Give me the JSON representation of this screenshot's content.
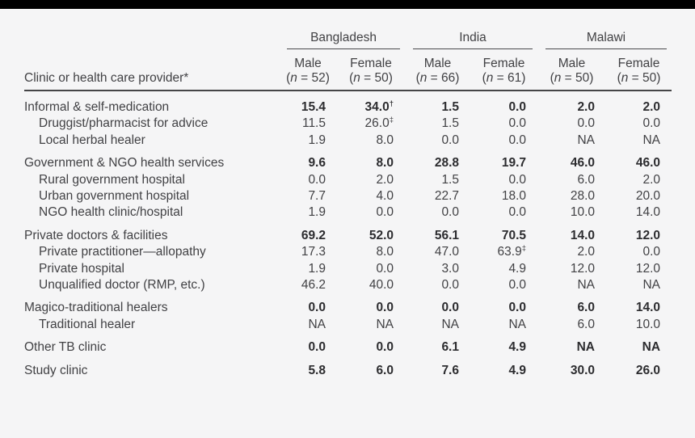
{
  "colors": {
    "background": "#f5f5f6",
    "text": "#414144",
    "bold_text": "#2c2c2f",
    "rule": "#4b4b4d",
    "top_bar": "#000000"
  },
  "table": {
    "row_header_label": "Clinic or health care provider*",
    "country_groups": [
      {
        "label": "Bangladesh",
        "columns": [
          {
            "sex": "Male",
            "n_label": "(n = 52)"
          },
          {
            "sex": "Female",
            "n_label": "(n = 50)"
          }
        ]
      },
      {
        "label": "India",
        "columns": [
          {
            "sex": "Male",
            "n_label": "(n = 66)"
          },
          {
            "sex": "Female",
            "n_label": "(n = 61)"
          }
        ]
      },
      {
        "label": "Malawi",
        "columns": [
          {
            "sex": "Male",
            "n_label": "(n = 50)"
          },
          {
            "sex": "Female",
            "n_label": "(n = 50)"
          }
        ]
      }
    ],
    "rows": [
      {
        "label": "Informal & self-medication",
        "indent": false,
        "bold": true,
        "group_start": true,
        "values": [
          "15.4",
          "34.0†",
          "1.5",
          "0.0",
          "2.0",
          "2.0"
        ]
      },
      {
        "label": "Druggist/pharmacist for advice",
        "indent": true,
        "bold": false,
        "group_start": false,
        "values": [
          "11.5",
          "26.0‡",
          "1.5",
          "0.0",
          "0.0",
          "0.0"
        ]
      },
      {
        "label": "Local herbal healer",
        "indent": true,
        "bold": false,
        "group_start": false,
        "values": [
          "1.9",
          "8.0",
          "0.0",
          "0.0",
          "NA",
          "NA"
        ]
      },
      {
        "label": "Government & NGO health services",
        "indent": false,
        "bold": true,
        "group_start": true,
        "values": [
          "9.6",
          "8.0",
          "28.8",
          "19.7",
          "46.0",
          "46.0"
        ]
      },
      {
        "label": "Rural government hospital",
        "indent": true,
        "bold": false,
        "group_start": false,
        "values": [
          "0.0",
          "2.0",
          "1.5",
          "0.0",
          "6.0",
          "2.0"
        ]
      },
      {
        "label": "Urban government hospital",
        "indent": true,
        "bold": false,
        "group_start": false,
        "values": [
          "7.7",
          "4.0",
          "22.7",
          "18.0",
          "28.0",
          "20.0"
        ]
      },
      {
        "label": "NGO health clinic/hospital",
        "indent": true,
        "bold": false,
        "group_start": false,
        "values": [
          "1.9",
          "0.0",
          "0.0",
          "0.0",
          "10.0",
          "14.0"
        ]
      },
      {
        "label": "Private doctors & facilities",
        "indent": false,
        "bold": true,
        "group_start": true,
        "values": [
          "69.2",
          "52.0",
          "56.1",
          "70.5",
          "14.0",
          "12.0"
        ]
      },
      {
        "label": "Private practitioner—allopathy",
        "indent": true,
        "bold": false,
        "group_start": false,
        "values": [
          "17.3",
          "8.0",
          "47.0",
          "63.9‡",
          "2.0",
          "0.0"
        ]
      },
      {
        "label": "Private hospital",
        "indent": true,
        "bold": false,
        "group_start": false,
        "values": [
          "1.9",
          "0.0",
          "3.0",
          "4.9",
          "12.0",
          "12.0"
        ]
      },
      {
        "label": "Unqualified doctor (RMP, etc.)",
        "indent": true,
        "bold": false,
        "group_start": false,
        "values": [
          "46.2",
          "40.0",
          "0.0",
          "0.0",
          "NA",
          "NA"
        ]
      },
      {
        "label": "Magico-traditional healers",
        "indent": false,
        "bold": true,
        "group_start": true,
        "values": [
          "0.0",
          "0.0",
          "0.0",
          "0.0",
          "6.0",
          "14.0"
        ]
      },
      {
        "label": "Traditional healer",
        "indent": true,
        "bold": false,
        "group_start": false,
        "values": [
          "NA",
          "NA",
          "NA",
          "NA",
          "6.0",
          "10.0"
        ]
      },
      {
        "label": "Other TB clinic",
        "indent": false,
        "bold": true,
        "group_start": true,
        "values": [
          "0.0",
          "0.0",
          "6.1",
          "4.9",
          "NA",
          "NA"
        ]
      },
      {
        "label": "Study clinic",
        "indent": false,
        "bold": true,
        "group_start": true,
        "values": [
          "5.8",
          "6.0",
          "7.6",
          "4.9",
          "30.0",
          "26.0"
        ]
      }
    ]
  }
}
